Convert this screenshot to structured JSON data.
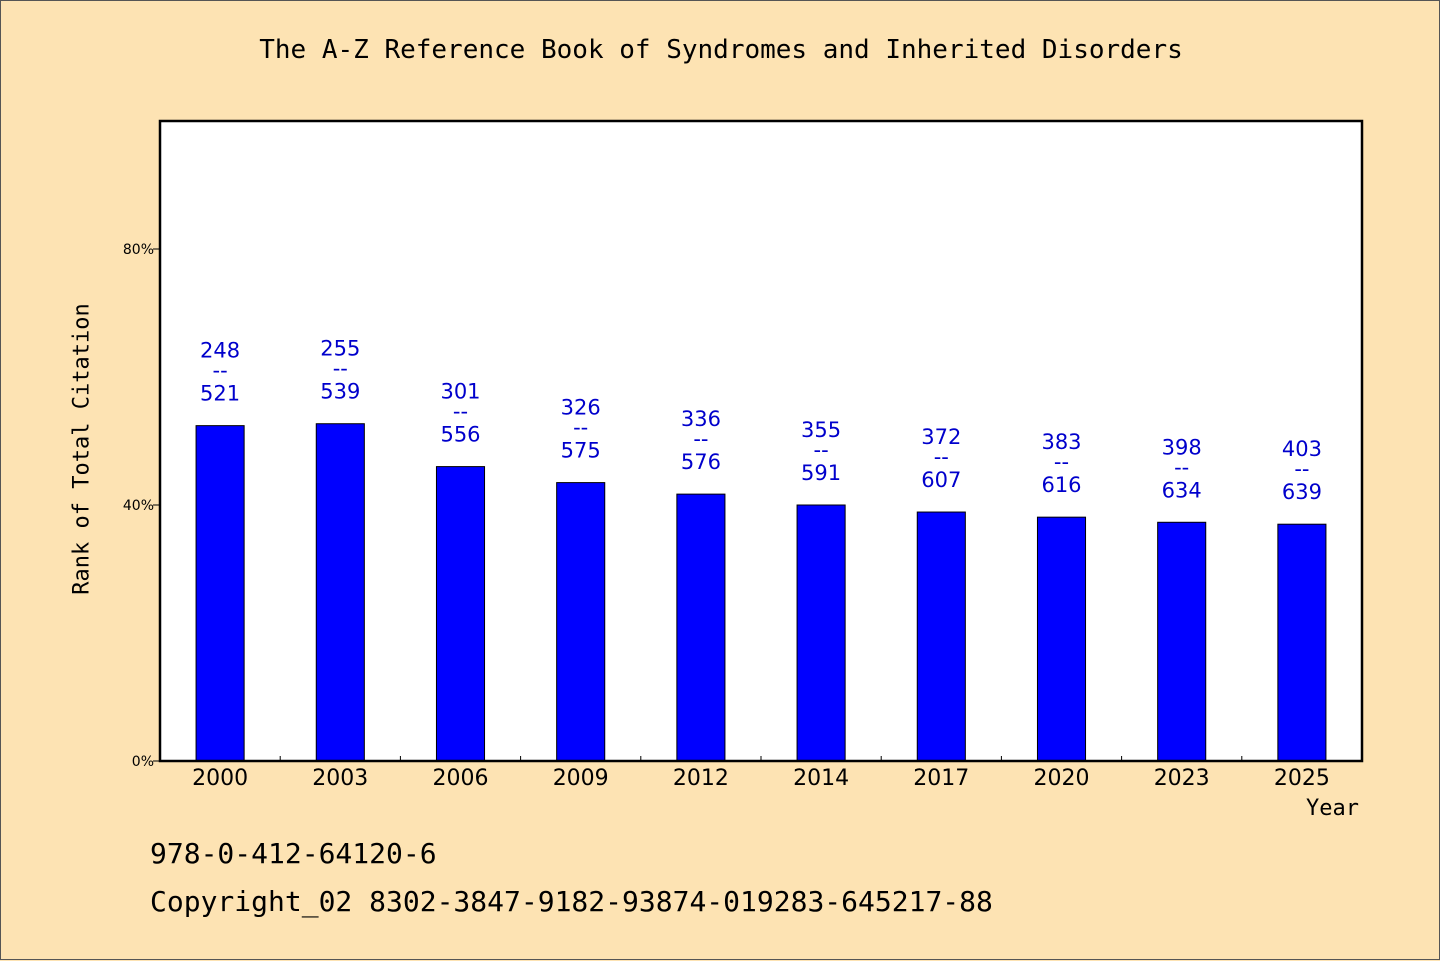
{
  "title": "The A-Z Reference Book of Syndromes and Inherited Disorders",
  "isbn": "978-0-412-64120-6",
  "copyright": "Copyright_02 8302-3847-9182-93874-019283-645217-88",
  "colors": {
    "background": "#fde3b3",
    "bar": "#0000ff",
    "label": "#0000cc"
  },
  "chart_data": {
    "type": "bar",
    "xlabel": "Year",
    "ylabel": "Rank of Total Citation",
    "ylim": [
      0,
      100
    ],
    "yticks": [
      0,
      40,
      80
    ],
    "ytick_labels": [
      "0%",
      "40%",
      "80%"
    ],
    "grid": false,
    "categories": [
      "2000",
      "2003",
      "2006",
      "2009",
      "2012",
      "2014",
      "2017",
      "2020",
      "2023",
      "2025"
    ],
    "values": [
      52.4,
      52.7,
      46.0,
      43.5,
      41.7,
      40.0,
      38.9,
      38.1,
      37.3,
      37.0
    ],
    "label_top": [
      "248",
      "255",
      "301",
      "326",
      "336",
      "355",
      "372",
      "383",
      "398",
      "403"
    ],
    "label_bottom": [
      "521",
      "539",
      "556",
      "575",
      "576",
      "591",
      "607",
      "616",
      "634",
      "639"
    ],
    "label_separator": "--"
  }
}
